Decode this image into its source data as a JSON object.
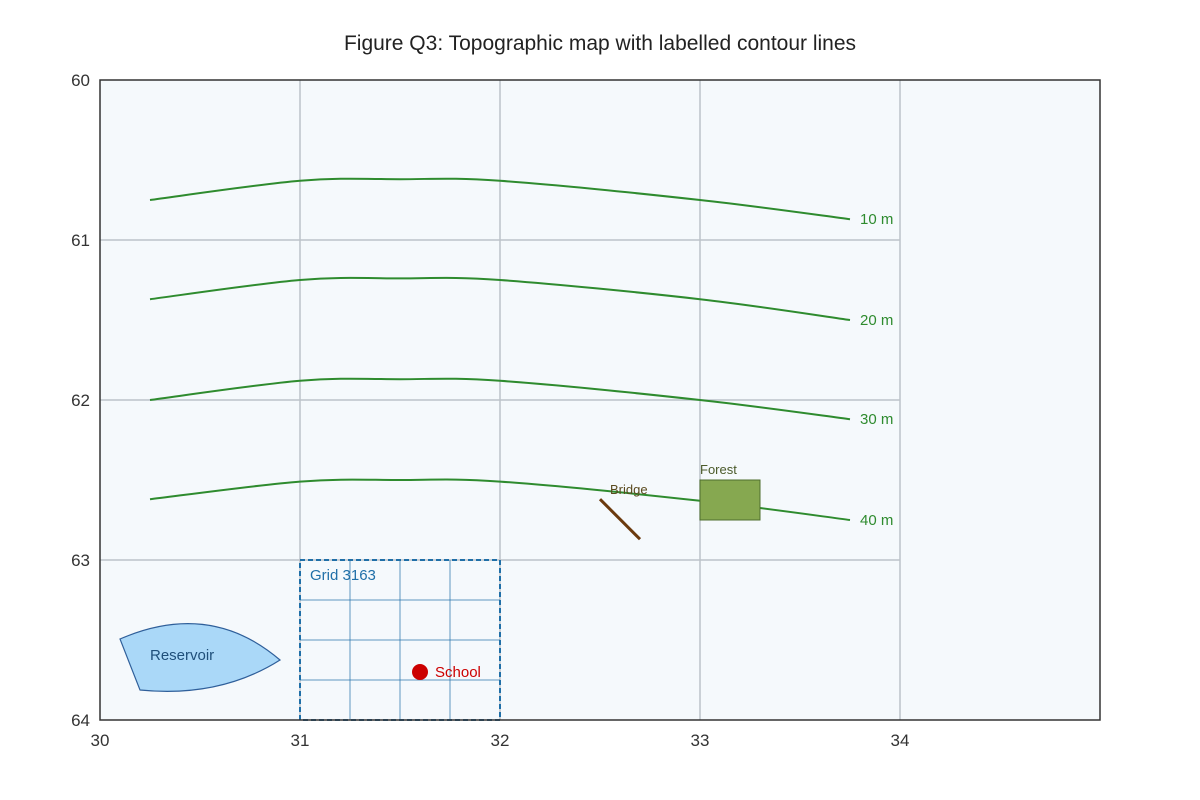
{
  "title": "Figure Q3: Topographic map with labelled contour lines",
  "map": {
    "x_axis": {
      "ticks": [
        "30",
        "31",
        "32",
        "33",
        "34"
      ],
      "range": [
        30,
        35
      ]
    },
    "y_axis": {
      "ticks": [
        "60",
        "61",
        "62",
        "63",
        "64"
      ],
      "range": [
        60,
        64
      ],
      "inverted": true
    },
    "gridlines": true,
    "contours": [
      {
        "label": "10 m",
        "points": [
          [
            30.25,
            60.75
          ],
          [
            31.0,
            60.63
          ],
          [
            31.5,
            60.62
          ],
          [
            32.0,
            60.63
          ],
          [
            33.0,
            60.75
          ],
          [
            33.75,
            60.87
          ]
        ]
      },
      {
        "label": "20 m",
        "points": [
          [
            30.25,
            61.37
          ],
          [
            31.0,
            61.25
          ],
          [
            31.5,
            61.24
          ],
          [
            32.0,
            61.25
          ],
          [
            33.0,
            61.37
          ],
          [
            33.75,
            61.5
          ]
        ]
      },
      {
        "label": "30 m",
        "points": [
          [
            30.25,
            62.0
          ],
          [
            31.0,
            61.88
          ],
          [
            31.5,
            61.87
          ],
          [
            32.0,
            61.88
          ],
          [
            33.0,
            62.0
          ],
          [
            33.75,
            62.12
          ]
        ]
      },
      {
        "label": "40 m",
        "points": [
          [
            30.25,
            62.62
          ],
          [
            31.0,
            62.51
          ],
          [
            31.5,
            62.5
          ],
          [
            32.0,
            62.51
          ],
          [
            33.0,
            62.63
          ],
          [
            33.75,
            62.75
          ]
        ]
      }
    ],
    "features": {
      "grid_square": {
        "label": "Grid 3163",
        "x": [
          31,
          32
        ],
        "y": [
          63,
          64
        ],
        "subdivisions": 4
      },
      "school": {
        "label": "School",
        "x": 31.6,
        "y": 63.7
      },
      "bridge": {
        "label": "Bridge",
        "x": [
          32.5,
          32.7
        ],
        "y": [
          62.62,
          62.87
        ]
      },
      "forest": {
        "label": "Forest",
        "x": [
          33.0,
          33.3
        ],
        "y": [
          62.5,
          62.75
        ]
      },
      "reservoir": {
        "label": "Reservoir"
      }
    },
    "colors": {
      "background": "#f5f9fc",
      "contour": "#2e8b2e",
      "grid_square": "#1f6fa8",
      "school": "#cc0000",
      "bridge": "#6b3a0e",
      "forest": "#86a850",
      "reservoir": "#aad8f8"
    }
  }
}
